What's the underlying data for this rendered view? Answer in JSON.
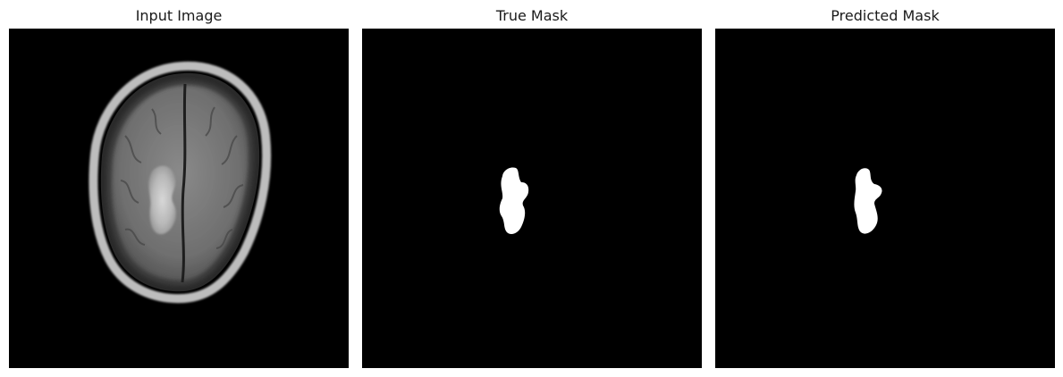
{
  "figure": {
    "panels": [
      {
        "title": "Input Image"
      },
      {
        "title": "True Mask"
      },
      {
        "title": "Predicted Mask"
      }
    ]
  }
}
